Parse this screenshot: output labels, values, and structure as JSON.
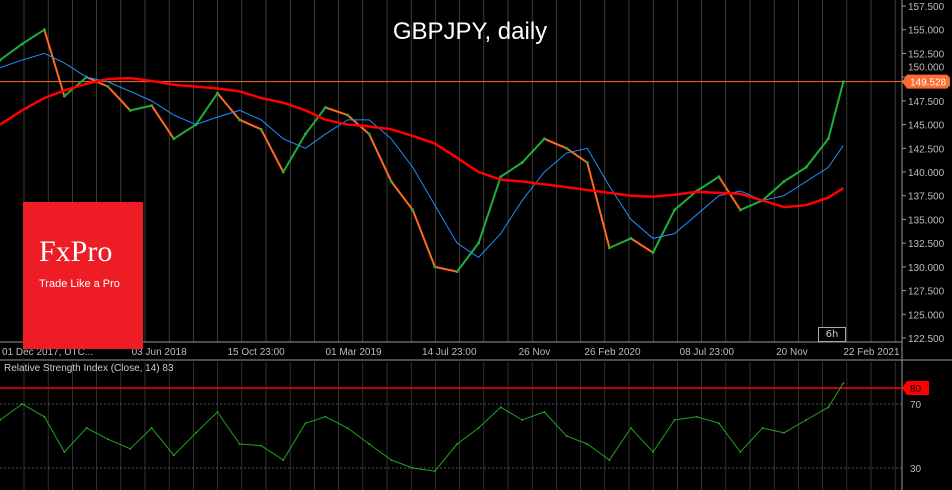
{
  "chart_data": {
    "type": "line",
    "title": "GBPJPY, daily",
    "price_axis": {
      "ticks": [
        "157.500",
        "155.000",
        "152.500",
        "150.000",
        "147.500",
        "145.000",
        "142.500",
        "140.000",
        "137.500",
        "135.000",
        "132.500",
        "130.000",
        "127.500",
        "125.000",
        "122.500"
      ],
      "range": [
        122.5,
        157.5
      ]
    },
    "time_axis": {
      "ticks": [
        "01 Dec 2017, UTC...",
        "03 Jun 2018",
        "15 Oct 23:00",
        "01 Mar 2019",
        "14 Jul 23:00",
        "26 Nov",
        "26 Feb 2020",
        "08 Jul 23:00",
        "20 Nov",
        "22 Feb 2021"
      ],
      "tick_dates": [
        "2017-12-01",
        "2018-06-03",
        "2018-10-15",
        "2019-03-01",
        "2019-07-14",
        "2019-11-26",
        "2020-02-26",
        "2020-07-08",
        "2020-11-20",
        "2021-02-22"
      ],
      "range": [
        "2017-12-01",
        "2021-05-15"
      ]
    },
    "current_price": "149.528",
    "period_badge": "6h",
    "dates": [
      "2017-12-01",
      "2018-01-01",
      "2018-02-01",
      "2018-03-01",
      "2018-04-01",
      "2018-05-01",
      "2018-06-01",
      "2018-07-01",
      "2018-08-01",
      "2018-09-01",
      "2018-10-01",
      "2018-11-01",
      "2018-12-01",
      "2019-01-01",
      "2019-02-01",
      "2019-03-01",
      "2019-04-01",
      "2019-05-01",
      "2019-06-01",
      "2019-07-01",
      "2019-08-01",
      "2019-09-01",
      "2019-10-01",
      "2019-11-01",
      "2019-12-01",
      "2020-01-01",
      "2020-02-01",
      "2020-03-01",
      "2020-04-01",
      "2020-05-01",
      "2020-06-01",
      "2020-07-01",
      "2020-08-01",
      "2020-09-01",
      "2020-10-01",
      "2020-11-01",
      "2020-12-01",
      "2021-01-01",
      "2021-02-01",
      "2021-02-22"
    ],
    "series": [
      {
        "key": "close",
        "values": [
          151.8,
          153.5,
          155.0,
          148.0,
          150.0,
          149.0,
          146.5,
          147.0,
          143.5,
          145.0,
          148.3,
          145.5,
          144.5,
          140.0,
          144.0,
          146.8,
          146.0,
          144.0,
          139.0,
          136.0,
          130.0,
          129.5,
          132.5,
          139.5,
          141.0,
          143.5,
          142.5,
          141.0,
          132.0,
          133.0,
          131.5,
          136.0,
          138.0,
          139.5,
          136.0,
          137.0,
          139.0,
          140.5,
          143.5,
          149.5
        ]
      },
      {
        "key": "ma_fast",
        "color": "#1e90ff",
        "values": [
          151.0,
          151.8,
          152.5,
          151.5,
          150.0,
          149.5,
          148.5,
          147.5,
          146.0,
          145.0,
          145.8,
          146.5,
          145.5,
          143.5,
          142.5,
          144.0,
          145.5,
          145.5,
          143.5,
          140.5,
          136.5,
          132.5,
          131.0,
          133.5,
          137.0,
          140.0,
          142.0,
          142.5,
          138.5,
          135.0,
          133.0,
          133.5,
          135.5,
          137.5,
          138.0,
          137.0,
          137.5,
          139.0,
          140.5,
          142.8
        ]
      },
      {
        "key": "ma_slow",
        "color": "#ff0000",
        "values": [
          145.0,
          146.5,
          147.8,
          148.6,
          149.3,
          149.8,
          149.9,
          149.6,
          149.2,
          149.0,
          148.8,
          148.5,
          147.8,
          147.3,
          146.5,
          145.5,
          145.0,
          144.8,
          144.5,
          143.8,
          143.0,
          141.5,
          140.0,
          139.2,
          139.0,
          138.7,
          138.4,
          138.1,
          137.8,
          137.5,
          137.4,
          137.6,
          137.9,
          137.8,
          137.7,
          137.0,
          136.3,
          136.5,
          137.3,
          138.3
        ]
      }
    ],
    "colors": {
      "up": "#1fae3a",
      "down": "#ff6a1f",
      "current_line": "#ff6a30",
      "rsi": "#22a022",
      "rsi_level": "#ff0000"
    },
    "rsi": {
      "label": "Relative Strength Index (Close, 14) 83",
      "levels": [
        "70",
        "30"
      ],
      "highlight_level": "80",
      "range": [
        20,
        90
      ],
      "values": [
        60,
        70,
        62,
        40,
        55,
        48,
        42,
        55,
        38,
        52,
        65,
        45,
        44,
        35,
        58,
        62,
        55,
        45,
        35,
        30,
        28,
        45,
        55,
        68,
        60,
        65,
        50,
        45,
        35,
        55,
        40,
        60,
        62,
        58,
        40,
        55,
        52,
        60,
        68,
        83
      ]
    }
  },
  "logo": {
    "brand": "FxPro",
    "tagline": "Trade Like a Pro"
  }
}
